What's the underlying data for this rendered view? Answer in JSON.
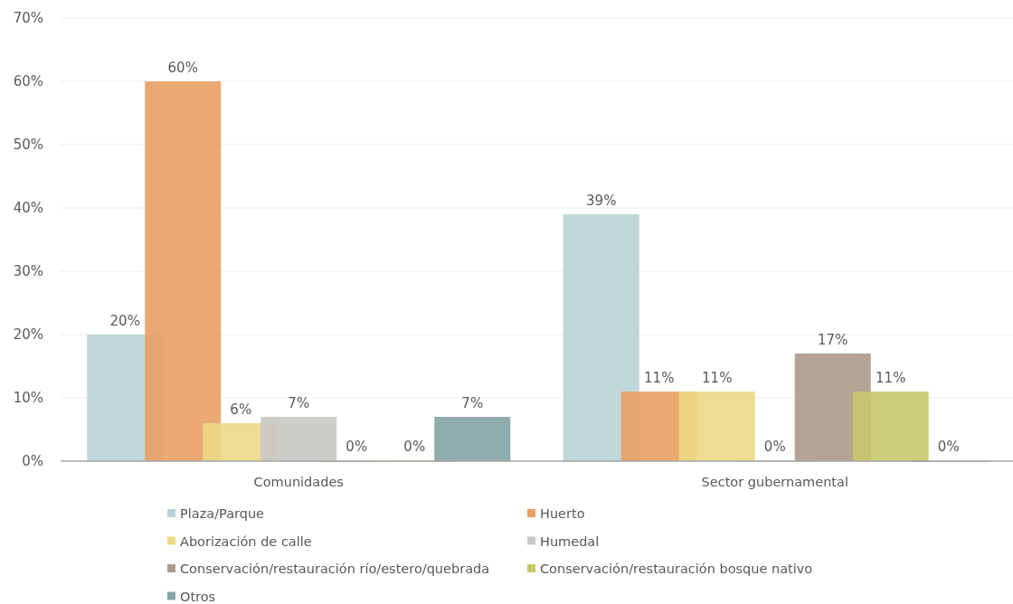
{
  "chart_data": {
    "type": "bar",
    "categories": [
      "Comunidades",
      "Sector gubernamental"
    ],
    "series": [
      {
        "name": "Plaza/Parque",
        "color": "#b9d3d3",
        "values": [
          20,
          39
        ],
        "value_labels": [
          "20%",
          "39%"
        ]
      },
      {
        "name": "Huerto",
        "color": "#e8a063",
        "values": [
          60,
          11
        ],
        "value_labels": [
          "60%",
          "11%"
        ]
      },
      {
        "name": "Aborización de calle",
        "color": "#ecd886",
        "values": [
          6,
          11
        ],
        "value_labels": [
          "6%",
          "11%"
        ]
      },
      {
        "name": "Humedal",
        "color": "#c8c8c4",
        "values": [
          7,
          0
        ],
        "value_labels": [
          "7%",
          "0%"
        ]
      },
      {
        "name": "Conservación/restauración río/estero/quebrada",
        "color": "#ad9a8a",
        "values": [
          0,
          17
        ],
        "value_labels": [
          "0%",
          "17%"
        ]
      },
      {
        "name": "Conservación/restauración bosque nativo",
        "color": "#c8c96a",
        "values": [
          0,
          11
        ],
        "value_labels": [
          "0%",
          "11%"
        ]
      },
      {
        "name": "Otros",
        "color": "#84a4a4",
        "values": [
          7,
          0
        ],
        "value_labels": [
          "7%",
          "0%"
        ]
      }
    ],
    "ylim": [
      0,
      70
    ],
    "yticks": [
      {
        "value": 0,
        "label": "0%"
      },
      {
        "value": 10,
        "label": "10%"
      },
      {
        "value": 20,
        "label": "20%"
      },
      {
        "value": 30,
        "label": "30%"
      },
      {
        "value": 40,
        "label": "40%"
      },
      {
        "value": 50,
        "label": "50%"
      },
      {
        "value": 60,
        "label": "60%"
      },
      {
        "value": 70,
        "label": "70%"
      }
    ],
    "grid": "y",
    "legend": "bottom"
  }
}
